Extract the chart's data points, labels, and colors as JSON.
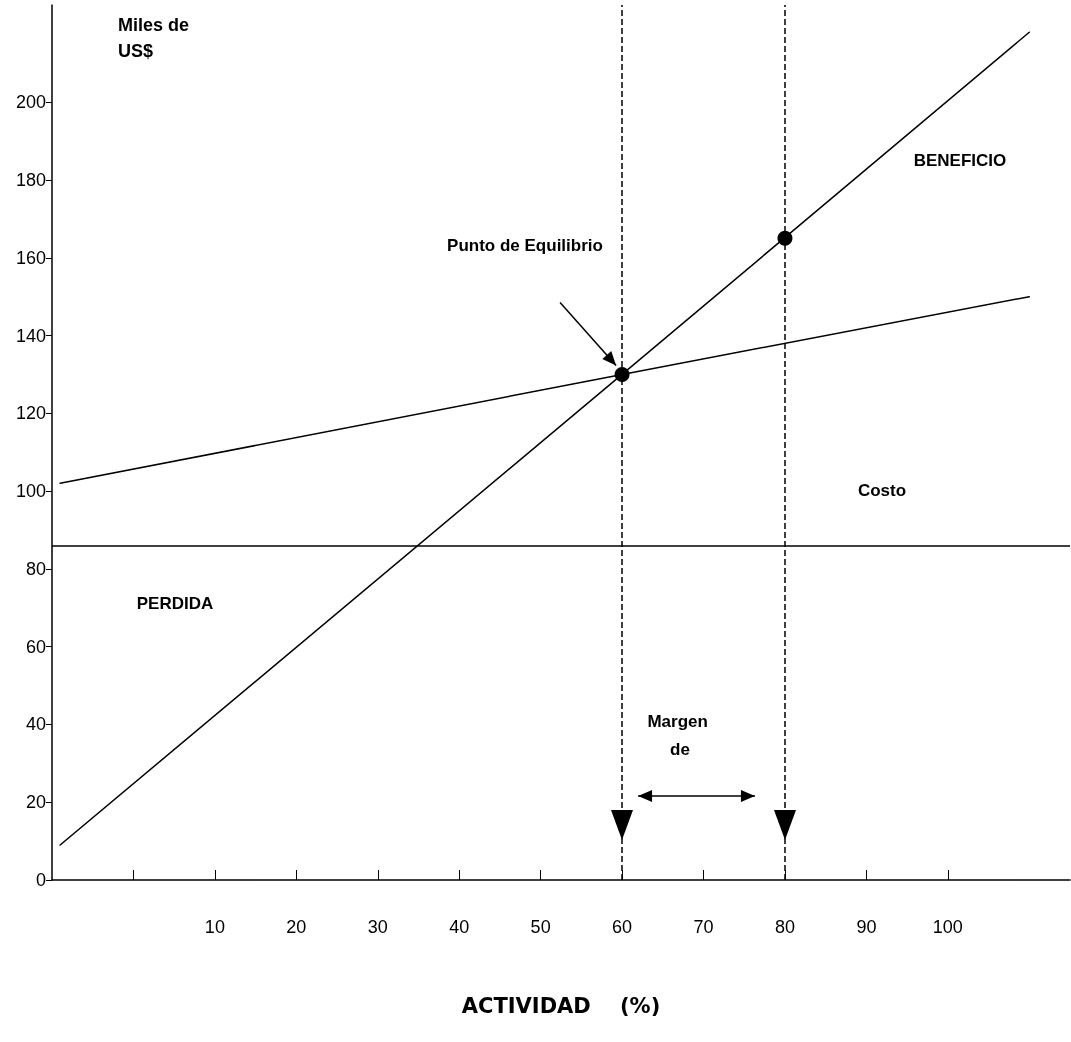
{
  "chart_data": {
    "type": "line",
    "xlabel": "ACTIVIDAD    (%)",
    "ylabel": "Miles de US$",
    "xlim": [
      -10,
      115
    ],
    "ylim": [
      0,
      225
    ],
    "xticks": [
      {
        "value": 0,
        "label": null
      },
      10,
      20,
      30,
      40,
      50,
      60,
      70,
      80,
      90,
      100
    ],
    "yticks": [
      0,
      20,
      40,
      60,
      80,
      100,
      120,
      140,
      160,
      180,
      200
    ],
    "series": [
      {
        "color": "#000000",
        "marker": "none",
        "x": [
          -9,
          60,
          110
        ],
        "values": [
          9,
          130,
          218
        ]
      },
      {
        "color": "#000000",
        "marker": "none",
        "x": [
          -9,
          60,
          110
        ],
        "values": [
          102,
          130,
          150
        ]
      },
      {
        "type": "scatter",
        "color": "#000000",
        "marker": "circle",
        "x": [
          60,
          80
        ],
        "values": [
          130,
          165
        ]
      }
    ],
    "ref_lines": [
      {
        "axis": "y",
        "value": 86,
        "color": "#000000",
        "line_style": "solid"
      },
      {
        "axis": "x",
        "value": 60,
        "color": "#000000",
        "line_style": "dashed"
      },
      {
        "axis": "x",
        "value": 80,
        "color": "#000000",
        "line_style": "dashed"
      }
    ],
    "annotations": [
      "Punto de Equilibrio",
      "BENEFICIO",
      "PERDIDA",
      "Costo",
      "Margen de"
    ]
  }
}
